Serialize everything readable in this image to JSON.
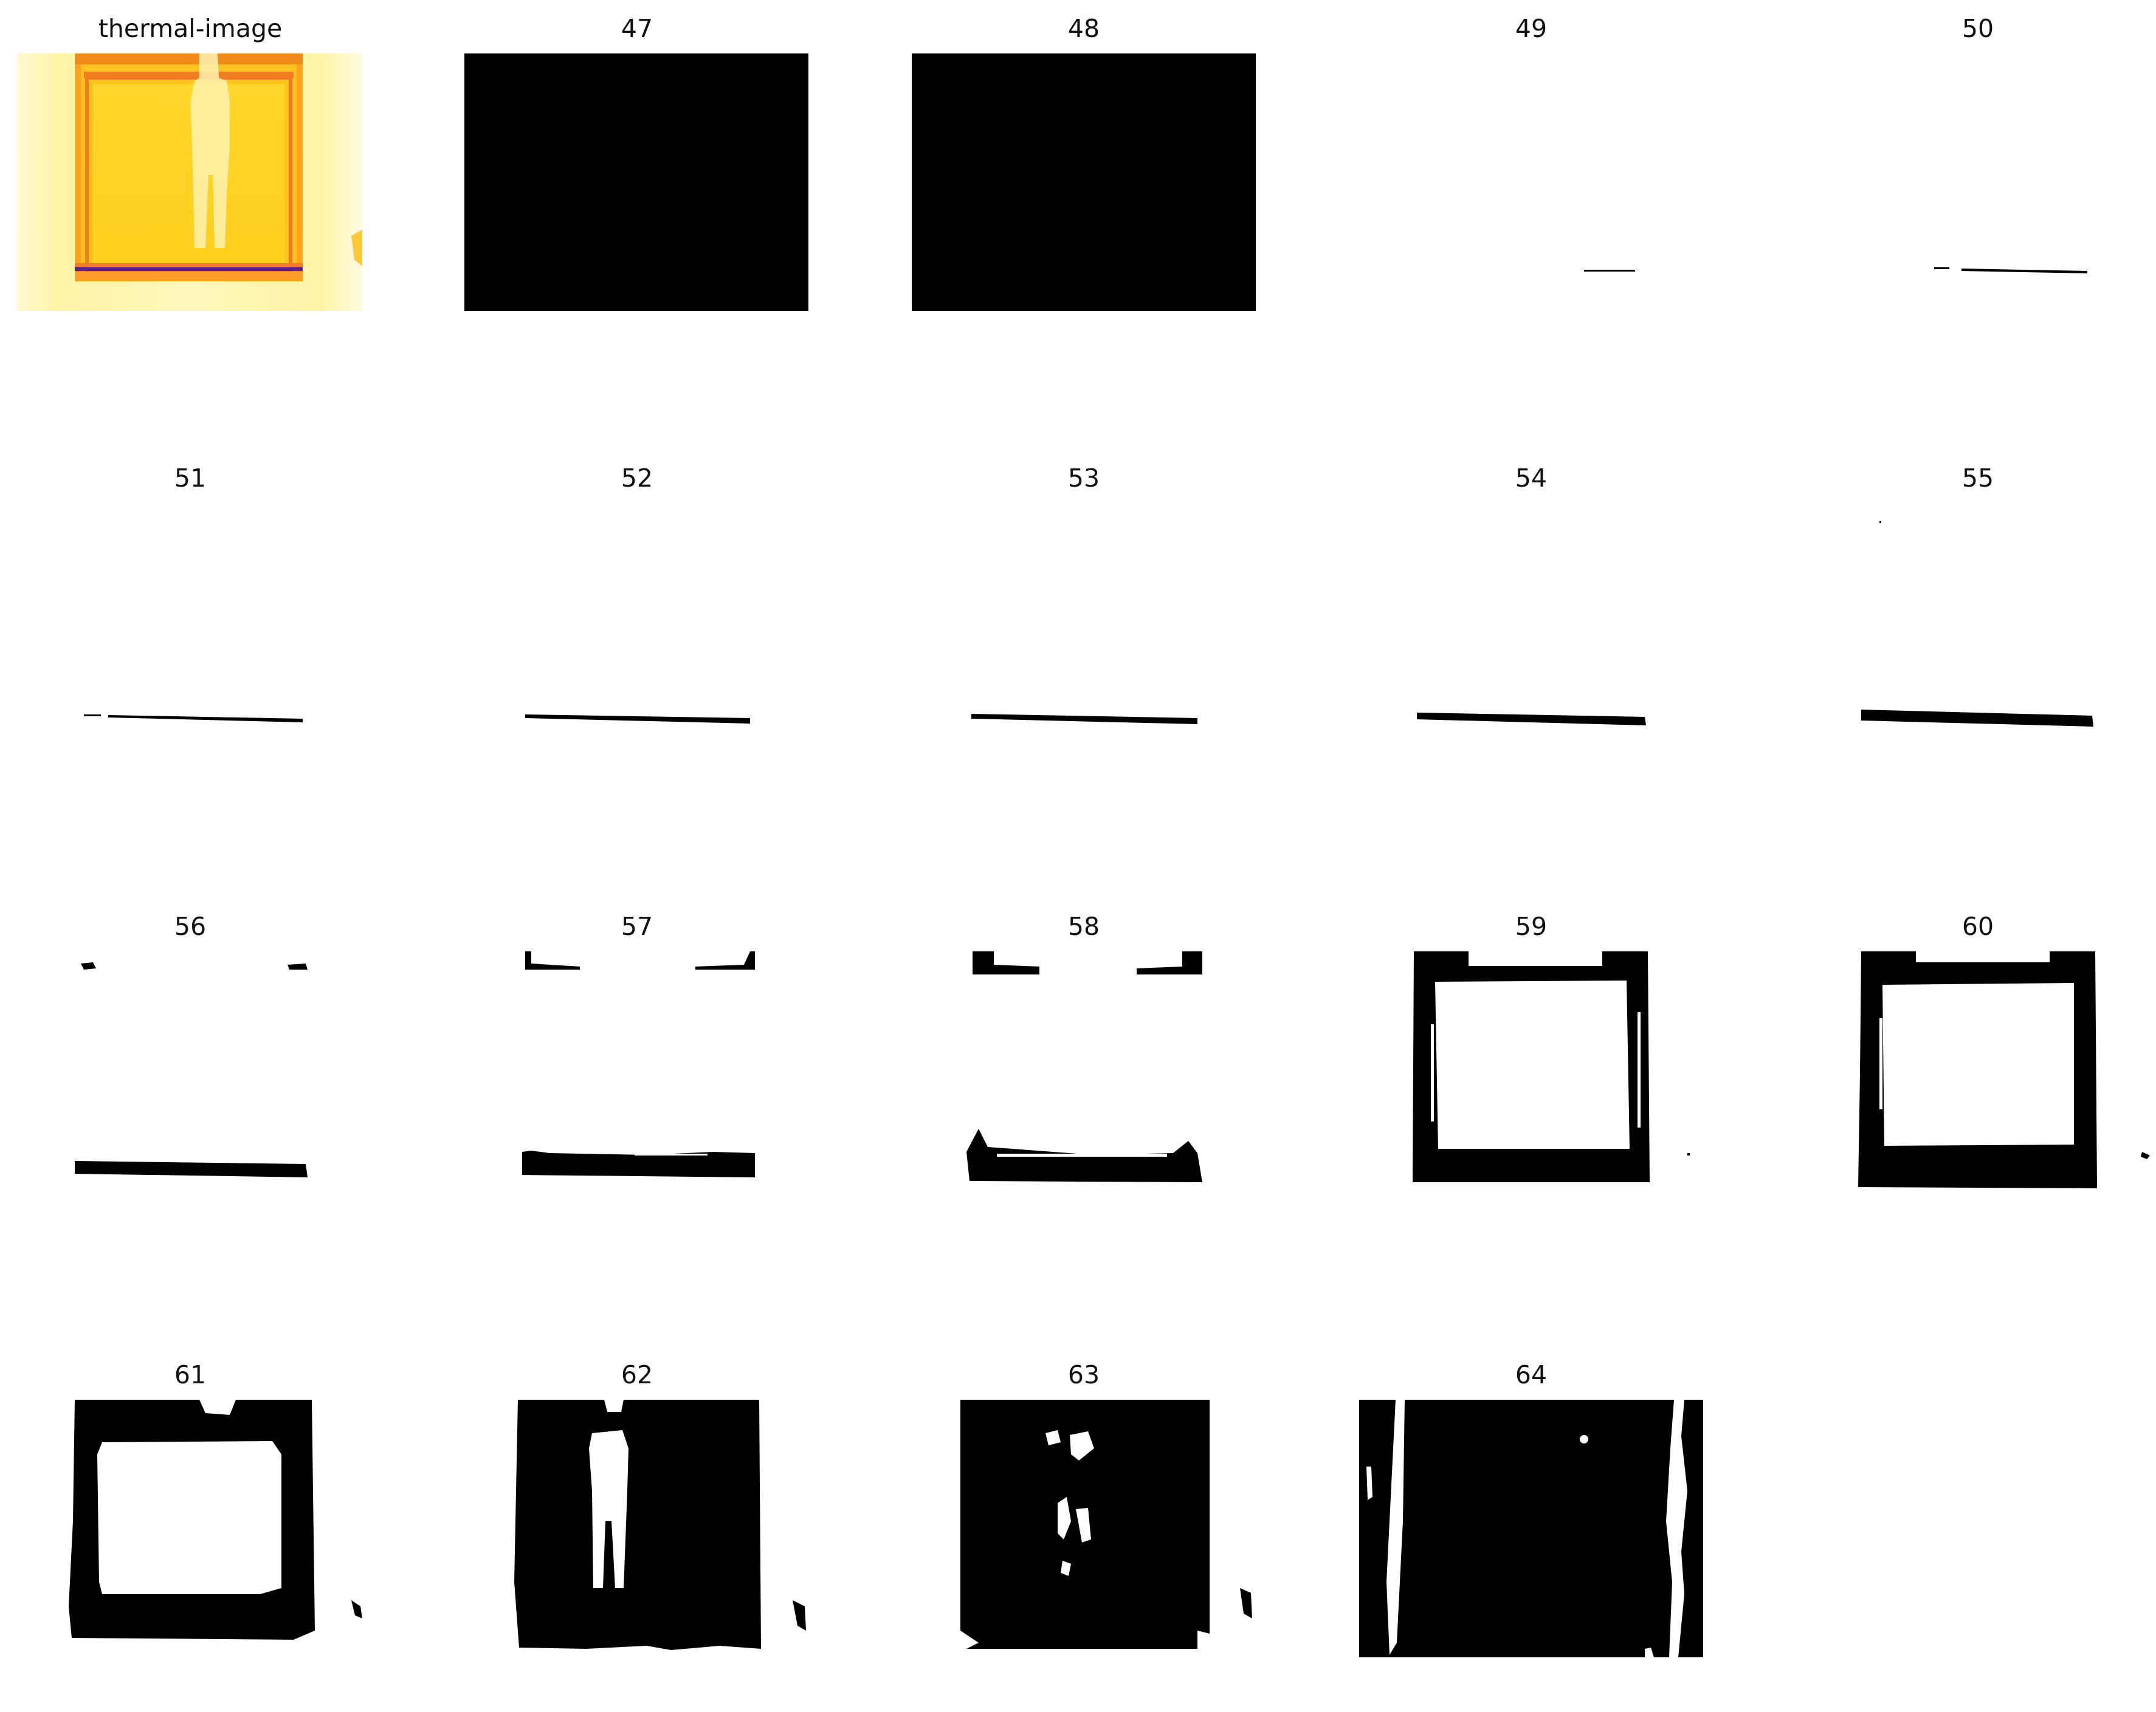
{
  "figure": {
    "panels": [
      {
        "id": "thermal",
        "title": "thermal-image",
        "kind": "thermal"
      },
      {
        "id": "p47",
        "title": "47",
        "kind": "mask",
        "mask": "full-black"
      },
      {
        "id": "p48",
        "title": "48",
        "kind": "mask",
        "mask": "full-black"
      },
      {
        "id": "p49",
        "title": "49",
        "kind": "mask",
        "mask": "short-line"
      },
      {
        "id": "p50",
        "title": "50",
        "kind": "mask",
        "mask": "line"
      },
      {
        "id": "p51",
        "title": "51",
        "kind": "mask",
        "mask": "line"
      },
      {
        "id": "p52",
        "title": "52",
        "kind": "mask",
        "mask": "line"
      },
      {
        "id": "p53",
        "title": "53",
        "kind": "mask",
        "mask": "line"
      },
      {
        "id": "p54",
        "title": "54",
        "kind": "mask",
        "mask": "thick-line"
      },
      {
        "id": "p55",
        "title": "55",
        "kind": "mask",
        "mask": "thick-line"
      },
      {
        "id": "p56",
        "title": "56",
        "kind": "mask",
        "mask": "bottom-bar"
      },
      {
        "id": "p57",
        "title": "57",
        "kind": "mask",
        "mask": "top-bottom-bars"
      },
      {
        "id": "p58",
        "title": "58",
        "kind": "mask",
        "mask": "top-bottom-bars-thick"
      },
      {
        "id": "p59",
        "title": "59",
        "kind": "mask",
        "mask": "frame-thin"
      },
      {
        "id": "p60",
        "title": "60",
        "kind": "mask",
        "mask": "frame"
      },
      {
        "id": "p61",
        "title": "61",
        "kind": "mask",
        "mask": "frame-thick"
      },
      {
        "id": "p62",
        "title": "62",
        "kind": "mask",
        "mask": "person"
      },
      {
        "id": "p63",
        "title": "63",
        "kind": "mask",
        "mask": "person-fragments"
      },
      {
        "id": "p64",
        "title": "64",
        "kind": "mask",
        "mask": "mostly-black"
      }
    ],
    "colors": {
      "mask_fg": "#000000",
      "mask_bg": "#ffffff",
      "thermal_hot": "#ffd21f",
      "thermal_warm": "#ff9a1a",
      "thermal_frame": "#f4b21c",
      "thermal_edge": "#fff7b8",
      "thermal_cold": "#5a1f8a"
    }
  }
}
